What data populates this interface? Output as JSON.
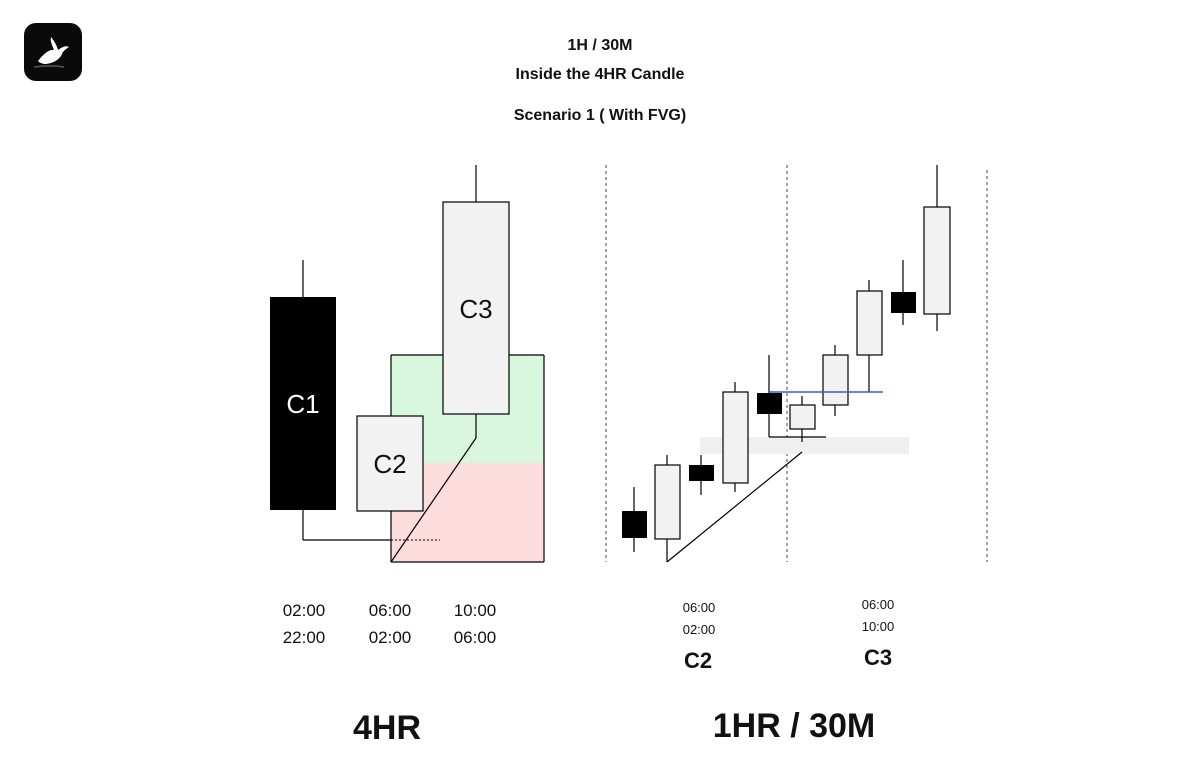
{
  "header": {
    "title_line1": "1H / 30M",
    "title_line2": "Inside the 4HR Candle",
    "subtitle": "Scenario 1 ( With FVG)"
  },
  "left_panel": {
    "candles": [
      {
        "label": "C1",
        "color": "#000000",
        "label_color": "#ffffff"
      },
      {
        "label": "C2",
        "color": "#f2f2f2",
        "label_color": "#111111"
      },
      {
        "label": "C3",
        "color": "#f2f2f2",
        "label_color": "#111111"
      }
    ],
    "time_rows": [
      [
        "02:00",
        "06:00",
        "10:00"
      ],
      [
        "22:00",
        "02:00",
        "06:00"
      ]
    ],
    "caption": "4HR",
    "zone_colors": {
      "green": "#d9f7dc",
      "red": "#fcdcdc"
    }
  },
  "right_panel": {
    "c2_times": [
      "06:00",
      "02:00"
    ],
    "c2_label": "C2",
    "c3_times": [
      "06:00",
      "10:00"
    ],
    "c3_label": "C3",
    "caption": "1HR / 30M",
    "line_colors": {
      "blue": "#3a5fbf",
      "fvg_band": "#efefef"
    }
  }
}
